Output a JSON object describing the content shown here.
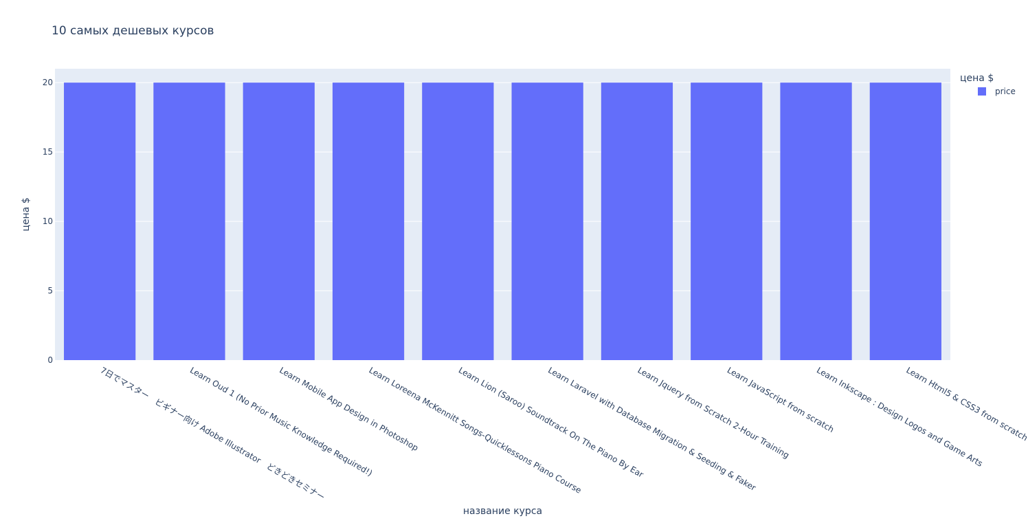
{
  "chart_data": {
    "type": "bar",
    "title": "10 самых дешевых курсов",
    "xlabel": "название курса",
    "ylabel": "цена $",
    "ylim": [
      0,
      21
    ],
    "yticks": [
      0,
      5,
      10,
      15,
      20
    ],
    "grid": true,
    "legend": {
      "title": "цена $",
      "placement": "top-right"
    },
    "categories": [
      "7日でマスター　ビギナー向け Adobe Illustrator　どきどきセミナー",
      "Learn Oud 1 (No Prior Music Knowledge Required!)",
      "Learn Mobile App Design in Photoshop",
      "Learn Loreena McKennitt Songs-Quicklessons Piano Course",
      "Learn Lion (Saroo) Soundtrack On The Piano By Ear",
      "Learn Laravel with Database Migration & Seeding & Faker",
      "Learn Jquery from Scratch 2-Hour Training",
      "Learn JavaScript from scratch",
      "Learn Inkscape : Design Logos and Game Arts",
      "Learn Html5 & CSS3 from scratch"
    ],
    "series": [
      {
        "name": "price",
        "color": "#636efa",
        "values": [
          20,
          20,
          20,
          20,
          20,
          20,
          20,
          20,
          20,
          20
        ]
      }
    ],
    "colors": {
      "plot_bg": "#e5ecf6",
      "grid": "#ffffff",
      "text": "#2a3f5f"
    }
  }
}
